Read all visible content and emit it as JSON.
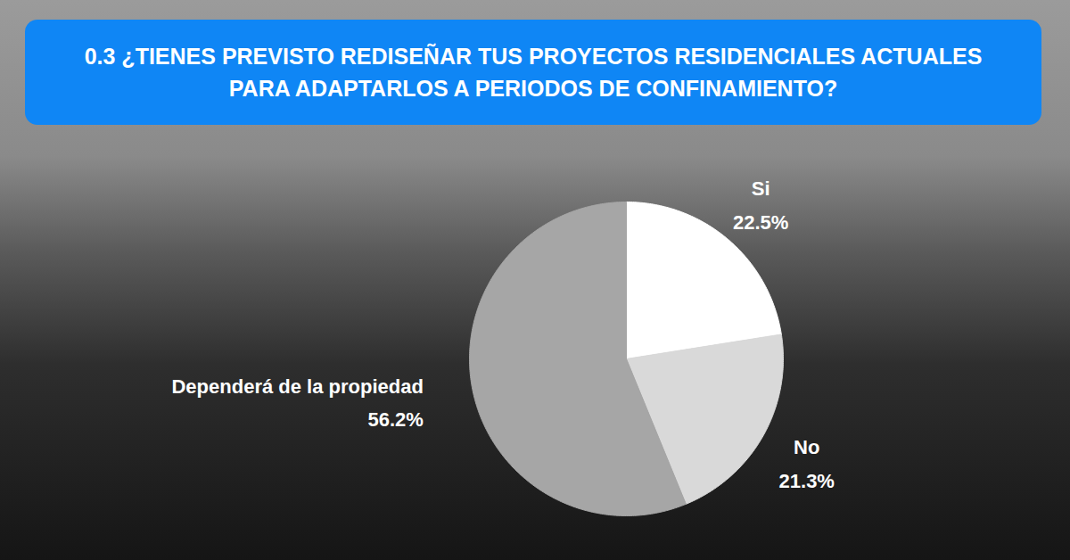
{
  "chart_data": {
    "type": "pie",
    "title": "0.3 ¿TIENES PREVISTO REDISEÑAR TUS PROYECTOS RESIDENCIALES ACTUALES PARA ADAPTARLOS A PERIODOS DE CONFINAMIENTO?",
    "categories": [
      "Si",
      "No",
      "Dependerá de la propiedad"
    ],
    "values": [
      22.5,
      21.3,
      56.2
    ],
    "value_labels": [
      "22.5%",
      "21.3%",
      "56.2%"
    ],
    "colors": [
      "#ffffff",
      "#d9d9d9",
      "#a6a6a6"
    ],
    "data_labels": true
  }
}
